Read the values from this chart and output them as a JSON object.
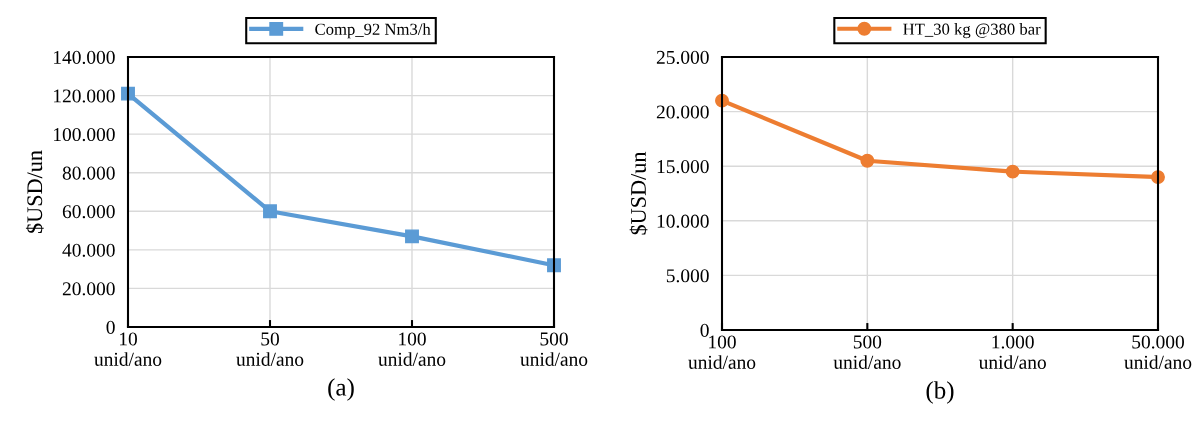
{
  "chart_data": [
    {
      "type": "line",
      "categories": [
        "10\nunid/ano",
        "50\nunid/ano",
        "100\nunid/ano",
        "500\nunid/ano"
      ],
      "series": [
        {
          "name": "Comp_92 Nm3/h",
          "color": "#5b9bd5",
          "values": [
            121000,
            60000,
            47000,
            32000
          ]
        }
      ],
      "ylabel": "$USD/un",
      "xlabel": "(a)",
      "ylim": [
        0,
        140000
      ],
      "yticks": [
        {
          "value": 0,
          "label": "0"
        },
        {
          "value": 20000,
          "label": "20.000"
        },
        {
          "value": 40000,
          "label": "40.000"
        },
        {
          "value": 60000,
          "label": "60.000"
        },
        {
          "value": 80000,
          "label": "80.000"
        },
        {
          "value": 100000,
          "label": "100.000"
        },
        {
          "value": 120000,
          "label": "120.000"
        },
        {
          "value": 140000,
          "label": "140.000"
        }
      ],
      "grid": true,
      "legend": "top",
      "marker": "square",
      "line_style": "solid"
    },
    {
      "type": "line",
      "categories": [
        "100\nunid/ano",
        "500\nunid/ano",
        "1.000\nunid/ano",
        "50.000\nunid/ano"
      ],
      "series": [
        {
          "name": "HT_30 kg @380 bar",
          "color": "#ed7d31",
          "values": [
            21000,
            15500,
            14500,
            14000
          ]
        }
      ],
      "ylabel": "$USD/un",
      "xlabel": "(b)",
      "ylim": [
        0,
        25000
      ],
      "yticks": [
        {
          "value": 0,
          "label": "0"
        },
        {
          "value": 5000,
          "label": "5.000"
        },
        {
          "value": 10000,
          "label": "10.000"
        },
        {
          "value": 15000,
          "label": "15.000"
        },
        {
          "value": 20000,
          "label": "20.000"
        },
        {
          "value": 25000,
          "label": "25.000"
        }
      ],
      "grid": true,
      "legend": "top",
      "marker": "circle",
      "line_style": "solid"
    }
  ]
}
